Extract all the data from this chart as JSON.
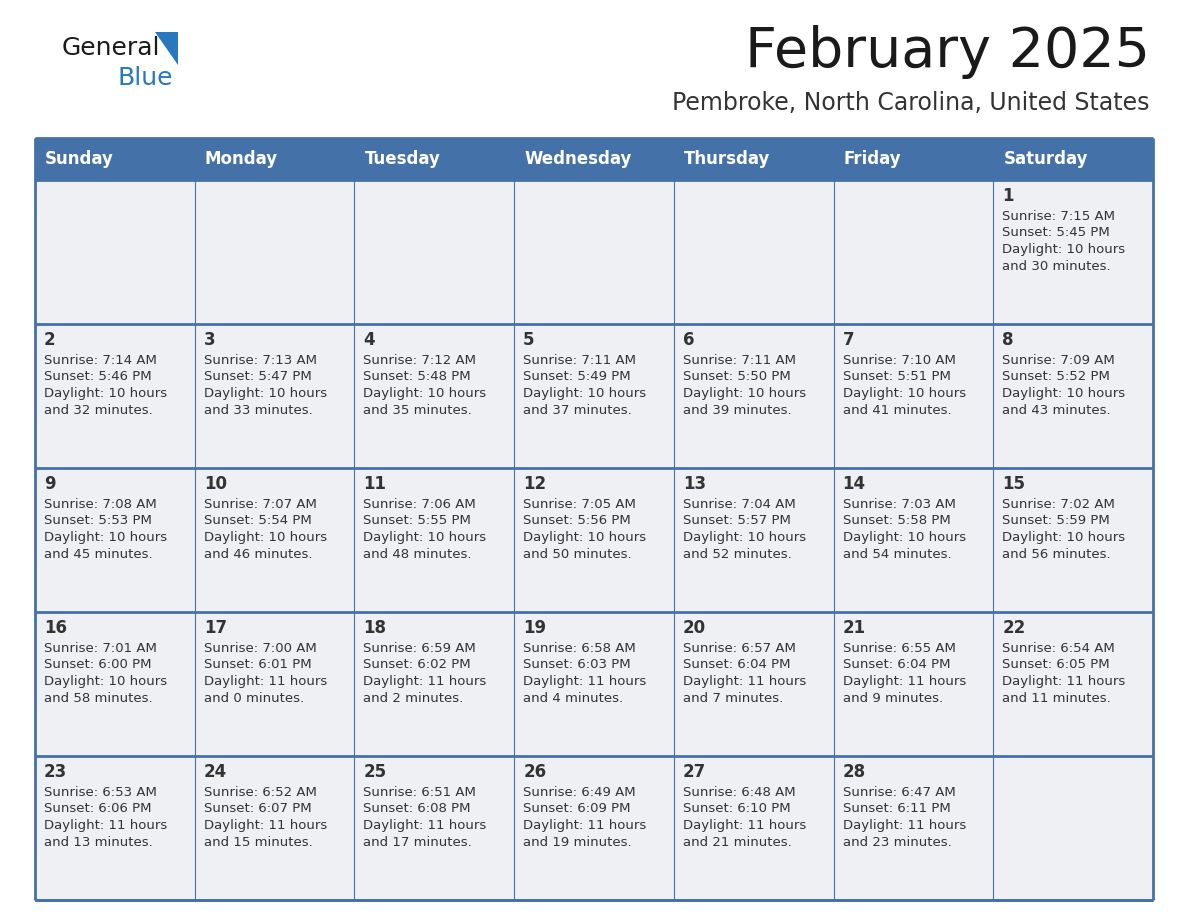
{
  "title": "February 2025",
  "subtitle": "Pembroke, North Carolina, United States",
  "days_of_week": [
    "Sunday",
    "Monday",
    "Tuesday",
    "Wednesday",
    "Thursday",
    "Friday",
    "Saturday"
  ],
  "header_bg": "#4472a8",
  "header_text": "#ffffff",
  "cell_bg_light": "#eef0f3",
  "border_color": "#4472a8",
  "border_color_thin": "#c0c8d8",
  "day_number_color": "#333333",
  "cell_text_color": "#333333",
  "title_color": "#1a1a1a",
  "subtitle_color": "#333333",
  "logo_general_color": "#1a1a1a",
  "logo_blue_color": "#2878be",
  "calendar_data": [
    [
      null,
      null,
      null,
      null,
      null,
      null,
      {
        "day": "1",
        "sunrise": "7:15 AM",
        "sunset": "5:45 PM",
        "daylight_line1": "Daylight: 10 hours",
        "daylight_line2": "and 30 minutes."
      }
    ],
    [
      {
        "day": "2",
        "sunrise": "7:14 AM",
        "sunset": "5:46 PM",
        "daylight_line1": "Daylight: 10 hours",
        "daylight_line2": "and 32 minutes."
      },
      {
        "day": "3",
        "sunrise": "7:13 AM",
        "sunset": "5:47 PM",
        "daylight_line1": "Daylight: 10 hours",
        "daylight_line2": "and 33 minutes."
      },
      {
        "day": "4",
        "sunrise": "7:12 AM",
        "sunset": "5:48 PM",
        "daylight_line1": "Daylight: 10 hours",
        "daylight_line2": "and 35 minutes."
      },
      {
        "day": "5",
        "sunrise": "7:11 AM",
        "sunset": "5:49 PM",
        "daylight_line1": "Daylight: 10 hours",
        "daylight_line2": "and 37 minutes."
      },
      {
        "day": "6",
        "sunrise": "7:11 AM",
        "sunset": "5:50 PM",
        "daylight_line1": "Daylight: 10 hours",
        "daylight_line2": "and 39 minutes."
      },
      {
        "day": "7",
        "sunrise": "7:10 AM",
        "sunset": "5:51 PM",
        "daylight_line1": "Daylight: 10 hours",
        "daylight_line2": "and 41 minutes."
      },
      {
        "day": "8",
        "sunrise": "7:09 AM",
        "sunset": "5:52 PM",
        "daylight_line1": "Daylight: 10 hours",
        "daylight_line2": "and 43 minutes."
      }
    ],
    [
      {
        "day": "9",
        "sunrise": "7:08 AM",
        "sunset": "5:53 PM",
        "daylight_line1": "Daylight: 10 hours",
        "daylight_line2": "and 45 minutes."
      },
      {
        "day": "10",
        "sunrise": "7:07 AM",
        "sunset": "5:54 PM",
        "daylight_line1": "Daylight: 10 hours",
        "daylight_line2": "and 46 minutes."
      },
      {
        "day": "11",
        "sunrise": "7:06 AM",
        "sunset": "5:55 PM",
        "daylight_line1": "Daylight: 10 hours",
        "daylight_line2": "and 48 minutes."
      },
      {
        "day": "12",
        "sunrise": "7:05 AM",
        "sunset": "5:56 PM",
        "daylight_line1": "Daylight: 10 hours",
        "daylight_line2": "and 50 minutes."
      },
      {
        "day": "13",
        "sunrise": "7:04 AM",
        "sunset": "5:57 PM",
        "daylight_line1": "Daylight: 10 hours",
        "daylight_line2": "and 52 minutes."
      },
      {
        "day": "14",
        "sunrise": "7:03 AM",
        "sunset": "5:58 PM",
        "daylight_line1": "Daylight: 10 hours",
        "daylight_line2": "and 54 minutes."
      },
      {
        "day": "15",
        "sunrise": "7:02 AM",
        "sunset": "5:59 PM",
        "daylight_line1": "Daylight: 10 hours",
        "daylight_line2": "and 56 minutes."
      }
    ],
    [
      {
        "day": "16",
        "sunrise": "7:01 AM",
        "sunset": "6:00 PM",
        "daylight_line1": "Daylight: 10 hours",
        "daylight_line2": "and 58 minutes."
      },
      {
        "day": "17",
        "sunrise": "7:00 AM",
        "sunset": "6:01 PM",
        "daylight_line1": "Daylight: 11 hours",
        "daylight_line2": "and 0 minutes."
      },
      {
        "day": "18",
        "sunrise": "6:59 AM",
        "sunset": "6:02 PM",
        "daylight_line1": "Daylight: 11 hours",
        "daylight_line2": "and 2 minutes."
      },
      {
        "day": "19",
        "sunrise": "6:58 AM",
        "sunset": "6:03 PM",
        "daylight_line1": "Daylight: 11 hours",
        "daylight_line2": "and 4 minutes."
      },
      {
        "day": "20",
        "sunrise": "6:57 AM",
        "sunset": "6:04 PM",
        "daylight_line1": "Daylight: 11 hours",
        "daylight_line2": "and 7 minutes."
      },
      {
        "day": "21",
        "sunrise": "6:55 AM",
        "sunset": "6:04 PM",
        "daylight_line1": "Daylight: 11 hours",
        "daylight_line2": "and 9 minutes."
      },
      {
        "day": "22",
        "sunrise": "6:54 AM",
        "sunset": "6:05 PM",
        "daylight_line1": "Daylight: 11 hours",
        "daylight_line2": "and 11 minutes."
      }
    ],
    [
      {
        "day": "23",
        "sunrise": "6:53 AM",
        "sunset": "6:06 PM",
        "daylight_line1": "Daylight: 11 hours",
        "daylight_line2": "and 13 minutes."
      },
      {
        "day": "24",
        "sunrise": "6:52 AM",
        "sunset": "6:07 PM",
        "daylight_line1": "Daylight: 11 hours",
        "daylight_line2": "and 15 minutes."
      },
      {
        "day": "25",
        "sunrise": "6:51 AM",
        "sunset": "6:08 PM",
        "daylight_line1": "Daylight: 11 hours",
        "daylight_line2": "and 17 minutes."
      },
      {
        "day": "26",
        "sunrise": "6:49 AM",
        "sunset": "6:09 PM",
        "daylight_line1": "Daylight: 11 hours",
        "daylight_line2": "and 19 minutes."
      },
      {
        "day": "27",
        "sunrise": "6:48 AM",
        "sunset": "6:10 PM",
        "daylight_line1": "Daylight: 11 hours",
        "daylight_line2": "and 21 minutes."
      },
      {
        "day": "28",
        "sunrise": "6:47 AM",
        "sunset": "6:11 PM",
        "daylight_line1": "Daylight: 11 hours",
        "daylight_line2": "and 23 minutes."
      },
      null
    ]
  ]
}
